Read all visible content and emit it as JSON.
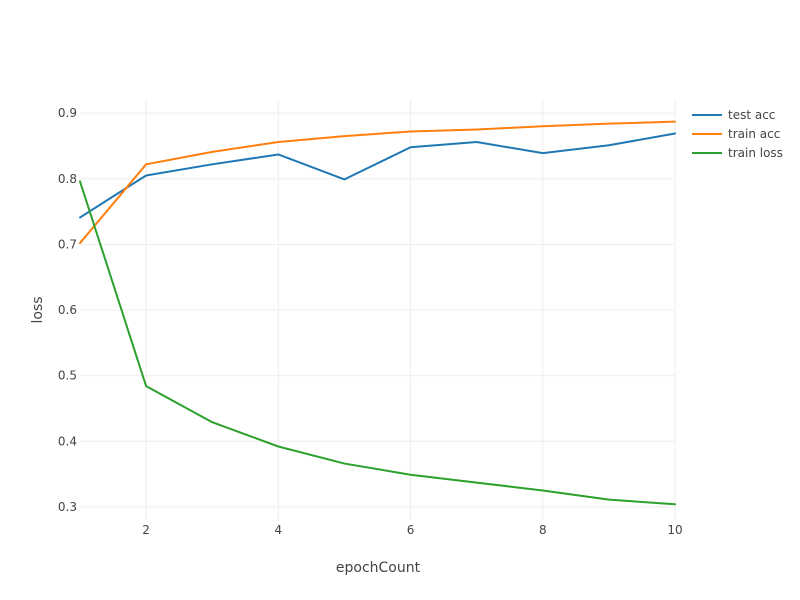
{
  "chart_data": {
    "type": "line",
    "title": "",
    "xlabel": "epochCount",
    "ylabel": "loss",
    "x": [
      1,
      2,
      3,
      4,
      5,
      6,
      7,
      8,
      9,
      10
    ],
    "xlim": [
      1,
      10
    ],
    "ylim": [
      0.28,
      0.92
    ],
    "xticks": [
      2,
      4,
      6,
      8,
      10
    ],
    "yticks": [
      0.3,
      0.4,
      0.5,
      0.6,
      0.7,
      0.8,
      0.9
    ],
    "grid": true,
    "legend_position": "top-right",
    "series": [
      {
        "name": "test acc",
        "color": "#1f77b4",
        "values": [
          0.741,
          0.805,
          0.822,
          0.837,
          0.799,
          0.848,
          0.856,
          0.839,
          0.851,
          0.869
        ]
      },
      {
        "name": "train acc",
        "color": "#ff7f0e",
        "values": [
          0.702,
          0.822,
          0.841,
          0.856,
          0.865,
          0.872,
          0.875,
          0.88,
          0.884,
          0.887
        ]
      },
      {
        "name": "train loss",
        "color": "#2ca02c",
        "values": [
          0.796,
          0.484,
          0.429,
          0.392,
          0.366,
          0.349,
          0.337,
          0.325,
          0.311,
          0.304
        ]
      }
    ]
  }
}
